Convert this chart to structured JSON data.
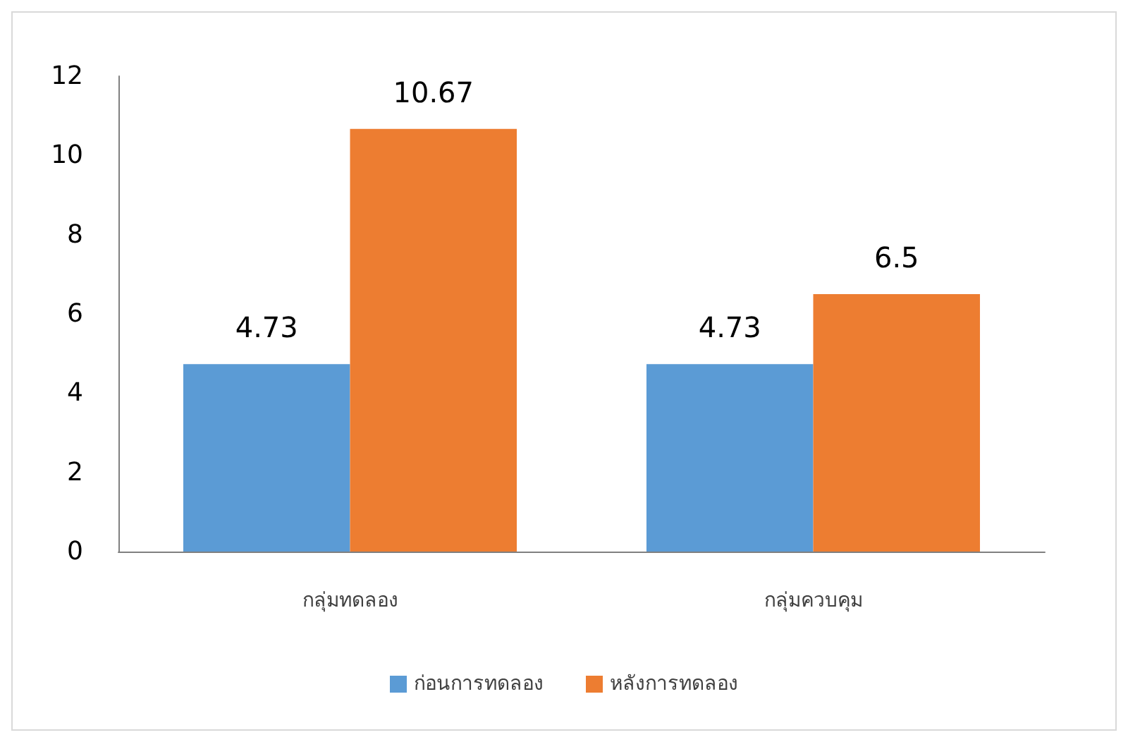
{
  "chart_data": {
    "type": "bar",
    "categories": [
      "กลุ่มทดลอง",
      "กลุ่มควบคุม"
    ],
    "series": [
      {
        "name": "ก่อนการทดลอง",
        "color": "#5b9bd5",
        "values": [
          4.73,
          4.73
        ]
      },
      {
        "name": "หลังการทดลอง",
        "color": "#ed7d31",
        "values": [
          10.67,
          6.5
        ]
      }
    ],
    "ylim": [
      0,
      12
    ],
    "yticks": [
      0,
      2,
      4,
      6,
      8,
      10,
      12
    ],
    "grid": false,
    "legend": "bottom",
    "data_labels": true
  }
}
